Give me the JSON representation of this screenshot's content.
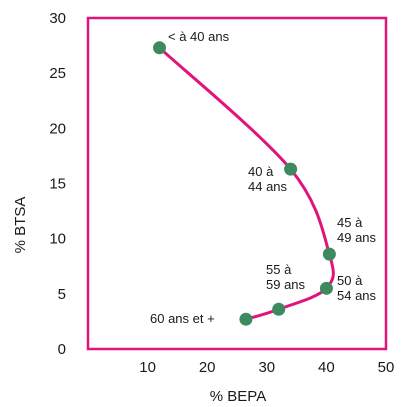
{
  "chart_data": {
    "type": "line",
    "title": "",
    "xlabel": "% BEPA",
    "ylabel": "% BTSA",
    "xlim": [
      0,
      50
    ],
    "ylim": [
      0,
      30
    ],
    "x_ticks": [
      10,
      20,
      30,
      40,
      50
    ],
    "y_ticks": [
      0,
      5,
      10,
      15,
      20,
      25,
      30
    ],
    "grid": false,
    "colors": {
      "line": "#e0147d",
      "frame": "#e0147d",
      "point": "#3d8a5e"
    },
    "points": [
      {
        "label": "< à 40 ans",
        "x": 12,
        "y": 27.3
      },
      {
        "label": "40 à 44 ans",
        "x": 34,
        "y": 16.3
      },
      {
        "label": "45 à 49 ans",
        "x": 40.5,
        "y": 8.6
      },
      {
        "label": "50 à 54 ans",
        "x": 40,
        "y": 5.5
      },
      {
        "label": "55 à 59 ans",
        "x": 32,
        "y": 3.6
      },
      {
        "label": "60 ans et +",
        "x": 26.5,
        "y": 2.7
      }
    ]
  }
}
